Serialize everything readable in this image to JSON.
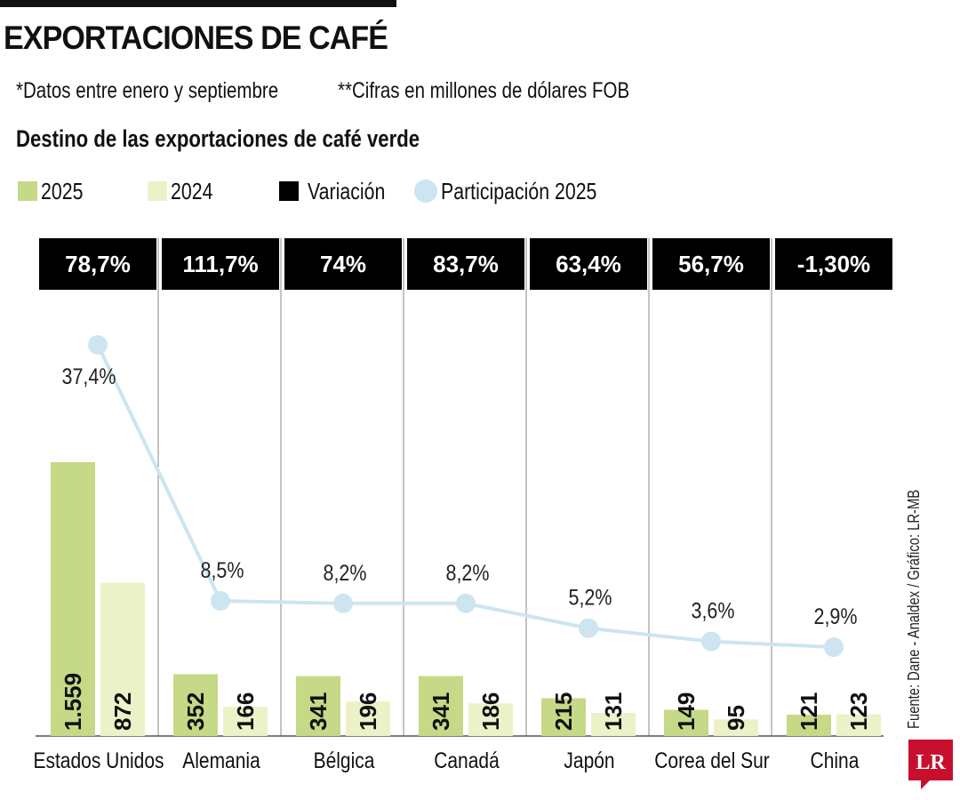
{
  "header": {
    "title": "EXPORTACIONES DE CAFÉ",
    "note1": "*Datos entre enero y septiembre",
    "note2": "**Cifras en millones de dólares FOB",
    "subtitle": "Destino de las exportaciones de café verde"
  },
  "legend": {
    "s2025": "2025",
    "s2024": "2024",
    "variacion": "Variación",
    "participacion": "Participación 2025"
  },
  "source": "Fuente: Dane - Analdex / Gráfico: LR-MB",
  "logo_text": "LR",
  "colors": {
    "bar2025": "#c5d986",
    "bar2024": "#ebf2c7",
    "variation_box": "#000000",
    "line": "#cde5f0",
    "logo": "#c8102e"
  },
  "chart_data": {
    "type": "bar",
    "categories": [
      "Estados Unidos",
      "Alemania",
      "Bélgica",
      "Canadá",
      "Japón",
      "Corea del Sur",
      "China"
    ],
    "series": [
      {
        "name": "2025",
        "values": [
          1559,
          352,
          341,
          341,
          215,
          149,
          121
        ],
        "labels": [
          "1.559",
          "352",
          "341",
          "341",
          "215",
          "149",
          "121"
        ]
      },
      {
        "name": "2024",
        "values": [
          872,
          166,
          196,
          186,
          131,
          95,
          123
        ],
        "labels": [
          "872",
          "166",
          "196",
          "186",
          "131",
          "95",
          "123"
        ]
      }
    ],
    "variacion": [
      "78,7%",
      "111,7%",
      "74%",
      "83,7%",
      "63,4%",
      "56,7%",
      "-1,30%"
    ],
    "participacion": {
      "name": "Participación 2025",
      "values": [
        37.4,
        8.5,
        8.2,
        8.2,
        5.2,
        3.6,
        2.9
      ],
      "labels": [
        "37,4%",
        "8,5%",
        "8,2%",
        "8,2%",
        "5,2%",
        "3,6%",
        "2,9%"
      ]
    },
    "ylim": [
      0,
      1559
    ]
  }
}
